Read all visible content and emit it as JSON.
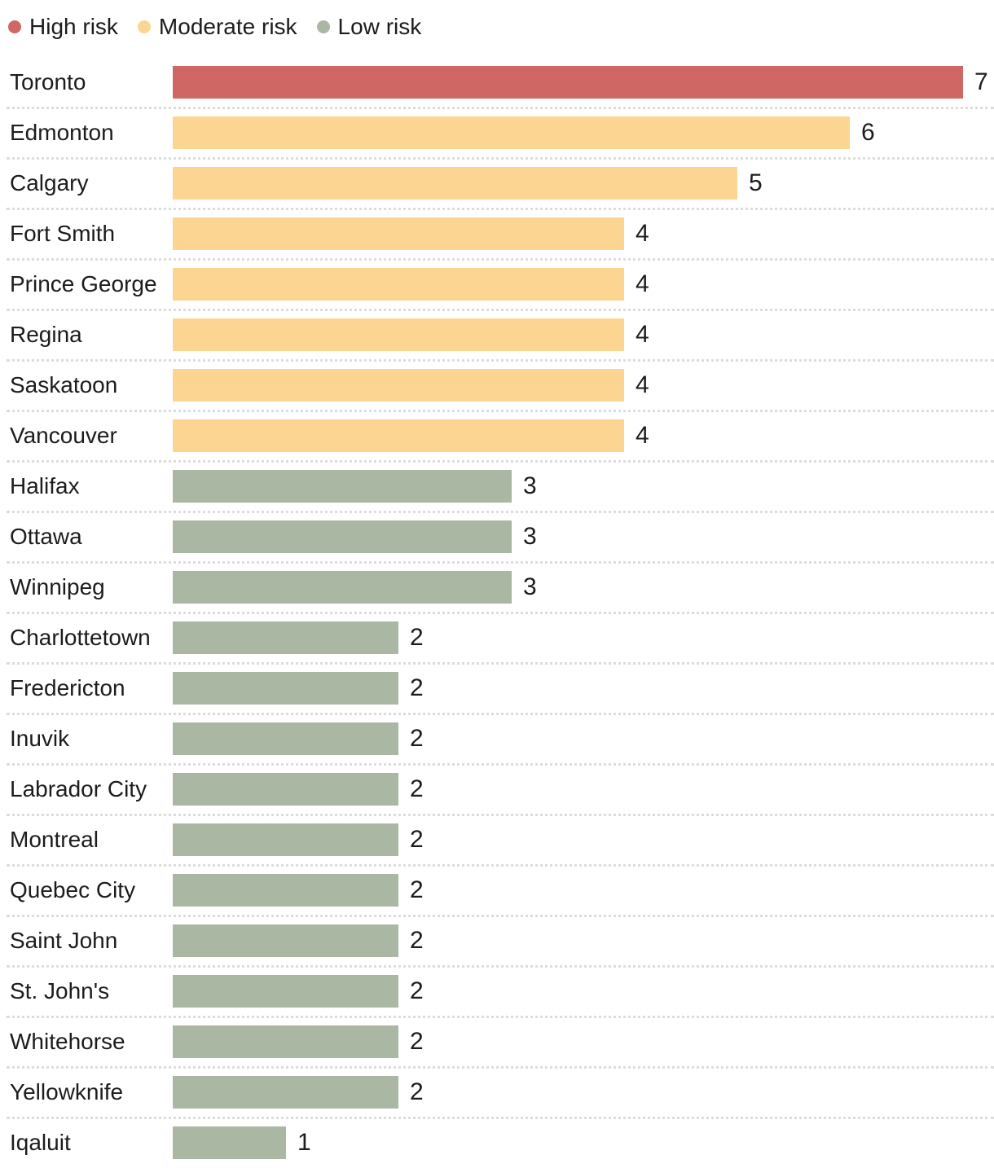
{
  "chart_data": {
    "type": "bar",
    "orientation": "horizontal",
    "title": "",
    "xlabel": "",
    "ylabel": "",
    "value_range": [
      0,
      7
    ],
    "grid": "dotted row separators",
    "legend_position": "top",
    "legend": [
      {
        "label": "High risk",
        "risk": "high",
        "color": "#cf6765"
      },
      {
        "label": "Moderate risk",
        "risk": "moderate",
        "color": "#fdd592"
      },
      {
        "label": "Low risk",
        "risk": "low",
        "color": "#aab7a3"
      }
    ],
    "risk_colors": {
      "high": "#cf6765",
      "moderate": "#fdd592",
      "low": "#aab7a3"
    },
    "categories": [
      "Toronto",
      "Edmonton",
      "Calgary",
      "Fort Smith",
      "Prince George",
      "Regina",
      "Saskatoon",
      "Vancouver",
      "Halifax",
      "Ottawa",
      "Winnipeg",
      "Charlottetown",
      "Fredericton",
      "Inuvik",
      "Labrador City",
      "Montreal",
      "Quebec City",
      "Saint John",
      "St. John's",
      "Whitehorse",
      "Yellowknife",
      "Iqaluit"
    ],
    "values": [
      7,
      6,
      5,
      4,
      4,
      4,
      4,
      4,
      3,
      3,
      3,
      2,
      2,
      2,
      2,
      2,
      2,
      2,
      2,
      2,
      2,
      1
    ],
    "rows": [
      {
        "name": "Toronto",
        "value": 7,
        "risk": "high"
      },
      {
        "name": "Edmonton",
        "value": 6,
        "risk": "moderate"
      },
      {
        "name": "Calgary",
        "value": 5,
        "risk": "moderate"
      },
      {
        "name": "Fort Smith",
        "value": 4,
        "risk": "moderate"
      },
      {
        "name": "Prince George",
        "value": 4,
        "risk": "moderate"
      },
      {
        "name": "Regina",
        "value": 4,
        "risk": "moderate"
      },
      {
        "name": "Saskatoon",
        "value": 4,
        "risk": "moderate"
      },
      {
        "name": "Vancouver",
        "value": 4,
        "risk": "moderate"
      },
      {
        "name": "Halifax",
        "value": 3,
        "risk": "low"
      },
      {
        "name": "Ottawa",
        "value": 3,
        "risk": "low"
      },
      {
        "name": "Winnipeg",
        "value": 3,
        "risk": "low"
      },
      {
        "name": "Charlottetown",
        "value": 2,
        "risk": "low"
      },
      {
        "name": "Fredericton",
        "value": 2,
        "risk": "low"
      },
      {
        "name": "Inuvik",
        "value": 2,
        "risk": "low"
      },
      {
        "name": "Labrador City",
        "value": 2,
        "risk": "low"
      },
      {
        "name": "Montreal",
        "value": 2,
        "risk": "low"
      },
      {
        "name": "Quebec City",
        "value": 2,
        "risk": "low"
      },
      {
        "name": "Saint John",
        "value": 2,
        "risk": "low"
      },
      {
        "name": "St. John's",
        "value": 2,
        "risk": "low"
      },
      {
        "name": "Whitehorse",
        "value": 2,
        "risk": "low"
      },
      {
        "name": "Yellowknife",
        "value": 2,
        "risk": "low"
      },
      {
        "name": "Iqaluit",
        "value": 1,
        "risk": "low"
      }
    ]
  }
}
